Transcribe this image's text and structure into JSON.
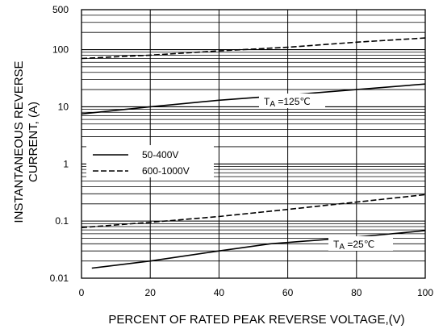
{
  "chart_data": {
    "type": "line",
    "xlabel": "PERCENT OF RATED PEAK REVERSE VOLTAGE,(V)",
    "ylabel_line1": "INSTANTANEOUS REVERSE",
    "ylabel_line2": "CURRENT, (A)",
    "xlim": [
      0,
      100
    ],
    "ylim": [
      0.01,
      500
    ],
    "yscale": "log",
    "grid": true,
    "x_ticks": [
      0,
      20,
      40,
      60,
      80,
      100
    ],
    "x_tick_labels": [
      "0",
      "20",
      "40",
      "60",
      "80",
      "100"
    ],
    "y_ticks": [
      0.01,
      0.1,
      1,
      10,
      100,
      500
    ],
    "y_tick_labels": [
      "0.01",
      "0.1",
      "1",
      "10",
      "100",
      "500"
    ],
    "legend_position": "left-middle",
    "annotations": [
      {
        "text": "T",
        "sub": "A",
        "rest": "=125℃"
      },
      {
        "text": "T",
        "sub": "A",
        "rest": "=25℃"
      }
    ],
    "series": [
      {
        "name": "50-400V",
        "style": "solid",
        "condition": "125",
        "x": [
          0,
          20,
          40,
          60,
          80,
          100
        ],
        "y": [
          7.5,
          10,
          13,
          16,
          20,
          25
        ]
      },
      {
        "name": "600-1000V",
        "style": "dashed",
        "condition": "125",
        "x": [
          0,
          20,
          40,
          60,
          80,
          100
        ],
        "y": [
          70,
          80,
          95,
          110,
          135,
          160
        ]
      },
      {
        "name": "50-400V",
        "style": "solid",
        "condition": "25",
        "x": [
          3,
          20,
          40,
          55,
          70,
          85,
          100
        ],
        "y": [
          0.015,
          0.02,
          0.03,
          0.04,
          0.047,
          0.056,
          0.068
        ]
      },
      {
        "name": "600-1000V",
        "style": "dashed",
        "condition": "25",
        "x": [
          0,
          20,
          40,
          60,
          80,
          100
        ],
        "y": [
          0.077,
          0.095,
          0.12,
          0.16,
          0.215,
          0.29
        ]
      }
    ],
    "legend": [
      {
        "label": "50-400V",
        "style": "solid"
      },
      {
        "label": "600-1000V",
        "style": "dashed"
      }
    ],
    "line_color": "#000000"
  }
}
